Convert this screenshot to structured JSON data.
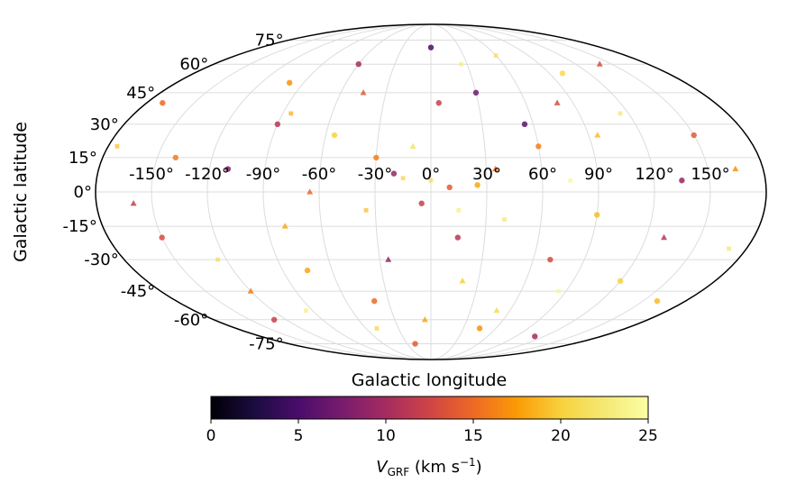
{
  "chart_data": {
    "type": "scatter",
    "projection": "mollweide",
    "title": "",
    "xlabel": "Galactic longitude",
    "ylabel": "Galactic latitude",
    "xlim": [
      -180,
      180
    ],
    "ylim": [
      -90,
      90
    ],
    "grid": true,
    "lon_ticks": [
      -150,
      -120,
      -90,
      -60,
      -30,
      0,
      30,
      60,
      90,
      120,
      150
    ],
    "lon_tick_labels": [
      "-150°",
      "-120°",
      "-90°",
      "-60°",
      "-30°",
      "0°",
      "30°",
      "60°",
      "90°",
      "120°",
      "150°"
    ],
    "lat_ticks": [
      75,
      60,
      45,
      30,
      15,
      0,
      -15,
      -30,
      -45,
      -60,
      -75
    ],
    "lat_tick_labels": [
      "75°",
      "60°",
      "45°",
      "30°",
      "15°",
      "0°",
      "-15°",
      "-30°",
      "-45°",
      "-60°",
      "-75°"
    ],
    "colorbar": {
      "cmap": "inferno",
      "vmin": 0,
      "vmax": 25,
      "ticks": [
        0,
        5,
        10,
        15,
        20,
        25
      ],
      "tick_labels": [
        "0",
        "5",
        "10",
        "15",
        "20",
        "25"
      ],
      "label_main": "V",
      "label_sub": "GRF",
      "label_units": " (km s",
      "label_sup": "−1",
      "label_close": ")"
    },
    "series": [
      {
        "marker": "circle",
        "points": [
          [
            10,
            2,
            14
          ],
          [
            -5,
            -5,
            12
          ],
          [
            25,
            3,
            18
          ],
          [
            -20,
            8,
            9
          ],
          [
            60,
            20,
            16
          ],
          [
            -90,
            30,
            11
          ],
          [
            120,
            -40,
            20
          ],
          [
            -150,
            -20,
            13
          ],
          [
            30,
            45,
            7
          ],
          [
            -40,
            -50,
            15
          ],
          [
            90,
            -10,
            19
          ],
          [
            -110,
            10,
            8
          ],
          [
            150,
            25,
            14
          ],
          [
            -60,
            60,
            10
          ],
          [
            45,
            -65,
            17
          ],
          [
            0,
            70,
            5
          ],
          [
            -130,
            -60,
            12
          ],
          [
            100,
            55,
            21
          ],
          [
            -30,
            15,
            16
          ],
          [
            70,
            -30,
            13
          ],
          [
            -75,
            -35,
            18
          ],
          [
            135,
            5,
            9
          ],
          [
            -170,
            40,
            15
          ],
          [
            15,
            -20,
            11
          ],
          [
            -100,
            50,
            17
          ],
          [
            55,
            30,
            6
          ],
          [
            -20,
            -75,
            14
          ],
          [
            160,
            -50,
            19
          ],
          [
            5,
            40,
            12
          ],
          [
            -55,
            25,
            20
          ],
          [
            110,
            -70,
            10
          ],
          [
            -140,
            15,
            16
          ]
        ]
      },
      {
        "marker": "triangle",
        "points": [
          [
            35,
            10,
            15
          ],
          [
            -10,
            20,
            22
          ],
          [
            80,
            40,
            13
          ],
          [
            -80,
            -15,
            18
          ],
          [
            130,
            -20,
            11
          ],
          [
            -120,
            -45,
            16
          ],
          [
            20,
            -40,
            20
          ],
          [
            -45,
            45,
            14
          ],
          [
            165,
            10,
            17
          ],
          [
            -160,
            -5,
            12
          ],
          [
            50,
            -55,
            21
          ],
          [
            -25,
            -30,
            9
          ],
          [
            95,
            25,
            19
          ],
          [
            -65,
            0,
            15
          ],
          [
            140,
            60,
            13
          ],
          [
            -5,
            -60,
            18
          ]
        ]
      },
      {
        "marker": "square",
        "points": [
          [
            0,
            5,
            21
          ],
          [
            15,
            -8,
            23
          ],
          [
            -15,
            6,
            20
          ],
          [
            40,
            -12,
            22
          ],
          [
            -35,
            -8,
            19
          ],
          [
            75,
            5,
            24
          ],
          [
            -85,
            35,
            18
          ],
          [
            115,
            35,
            22
          ],
          [
            -125,
            -30,
            21
          ],
          [
            25,
            60,
            23
          ],
          [
            -50,
            -65,
            20
          ],
          [
            85,
            -45,
            24
          ],
          [
            -175,
            20,
            19
          ],
          [
            170,
            -25,
            22
          ],
          [
            -95,
            -55,
            23
          ],
          [
            60,
            65,
            21
          ]
        ]
      }
    ]
  }
}
